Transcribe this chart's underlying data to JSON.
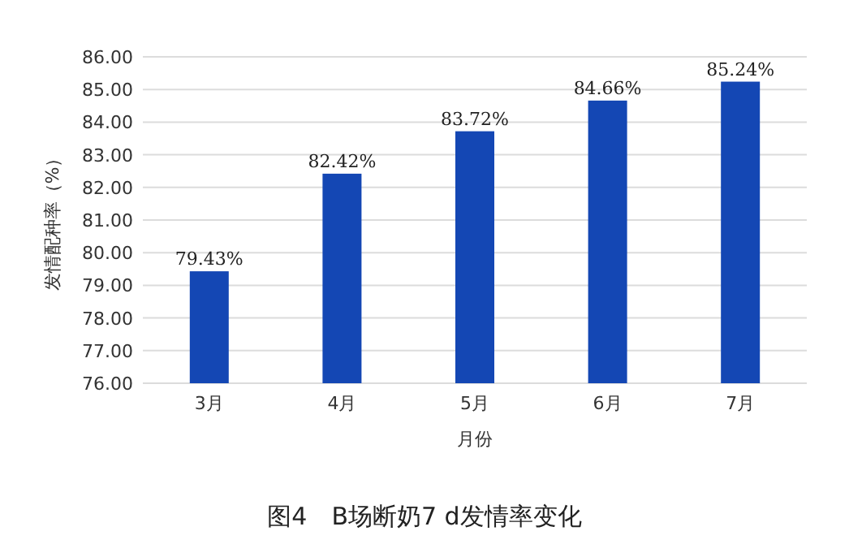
{
  "chart_data": {
    "type": "bar",
    "title": "图4　B场断奶7 d发情率变化",
    "xlabel": "月份",
    "ylabel": "发情配种率（%）",
    "categories": [
      "3月",
      "4月",
      "5月",
      "6月",
      "7月"
    ],
    "values": [
      79.43,
      82.42,
      83.72,
      84.66,
      85.24
    ],
    "value_labels": [
      "79.43%",
      "82.42%",
      "83.72%",
      "84.66%",
      "85.24%"
    ],
    "color": "#1447b4",
    "ylim": [
      76,
      86
    ],
    "yticks": [
      {
        "value": 76,
        "label": "76.00"
      },
      {
        "value": 77,
        "label": "77.00"
      },
      {
        "value": 78,
        "label": "78.00"
      },
      {
        "value": 79,
        "label": "79.00"
      },
      {
        "value": 80,
        "label": "80.00"
      },
      {
        "value": 81,
        "label": "81.00"
      },
      {
        "value": 82,
        "label": "82.00"
      },
      {
        "value": 83,
        "label": "83.00"
      },
      {
        "value": 84,
        "label": "84.00"
      },
      {
        "value": 85,
        "label": "85.00"
      },
      {
        "value": 86,
        "label": "86.00"
      }
    ],
    "grid": "y"
  }
}
